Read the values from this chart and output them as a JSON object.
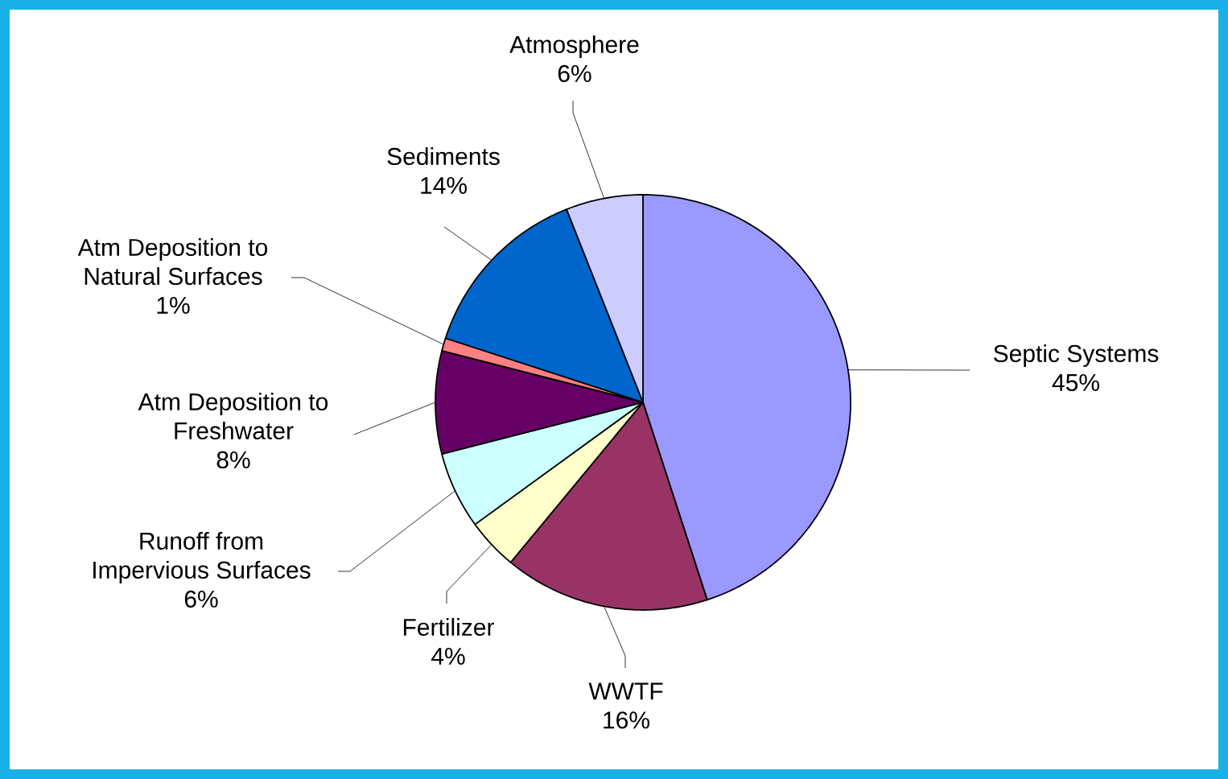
{
  "chart_data": {
    "type": "pie",
    "categories": [
      "Septic Systems",
      "WWTF",
      "Fertilizer",
      "Runoff from Impervious Surfaces",
      "Atm Deposition to Freshwater",
      "Atm Deposition to Natural Surfaces",
      "Sediments",
      "Atmosphere"
    ],
    "values": [
      45,
      16,
      4,
      6,
      8,
      1,
      14,
      6
    ],
    "value_labels": [
      "45%",
      "16%",
      "4%",
      "6%",
      "8%",
      "1%",
      "14%",
      "6%"
    ],
    "colors": [
      "#9999ff",
      "#993366",
      "#ffffcc",
      "#ccffff",
      "#660066",
      "#ff8080",
      "#0066cc",
      "#ccccff"
    ],
    "legend": false
  }
}
